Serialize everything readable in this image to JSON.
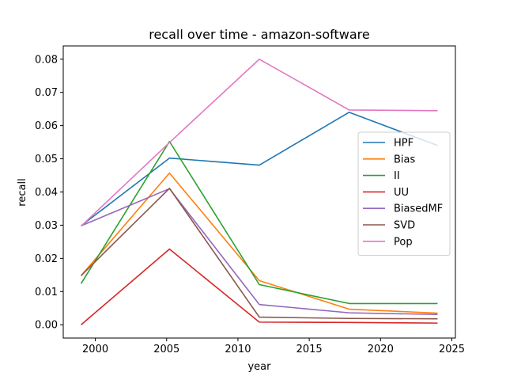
{
  "chart_data": {
    "type": "line",
    "title": "recall over time - amazon-software",
    "xlabel": "year",
    "ylabel": "recall",
    "xlim": [
      1997.75,
      2025.25
    ],
    "ylim": [
      -0.004,
      0.084
    ],
    "xticks": [
      2000,
      2005,
      2010,
      2015,
      2020,
      2025
    ],
    "yticks": [
      0.0,
      0.01,
      0.02,
      0.03,
      0.04,
      0.05,
      0.06,
      0.07,
      0.08
    ],
    "ytick_labels": [
      "0.00",
      "0.01",
      "0.02",
      "0.03",
      "0.04",
      "0.05",
      "0.06",
      "0.07",
      "0.08"
    ],
    "legend_position": "center-right",
    "x": [
      1999,
      2005.2,
      2011.5,
      2017.8,
      2024
    ],
    "series": [
      {
        "name": "HPF",
        "color": "#1f77b4",
        "values": [
          0.0298,
          0.0502,
          0.0481,
          0.064,
          0.054
        ]
      },
      {
        "name": "Bias",
        "color": "#ff7f0e",
        "values": [
          0.0148,
          0.0457,
          0.0133,
          0.0047,
          0.0035
        ]
      },
      {
        "name": "II",
        "color": "#2ca02c",
        "values": [
          0.0124,
          0.0552,
          0.0121,
          0.0064,
          0.0064
        ]
      },
      {
        "name": "UU",
        "color": "#d62728",
        "values": [
          0.0,
          0.0228,
          0.0008,
          0.0007,
          0.0005
        ]
      },
      {
        "name": "BiasedMF",
        "color": "#9467bd",
        "values": [
          0.0298,
          0.041,
          0.0061,
          0.0036,
          0.0031
        ]
      },
      {
        "name": "SVD",
        "color": "#8c564b",
        "values": [
          0.0148,
          0.0411,
          0.0023,
          0.0019,
          0.0018
        ]
      },
      {
        "name": "Pop",
        "color": "#e377c2",
        "values": [
          0.0297,
          0.0549,
          0.08,
          0.0647,
          0.0645
        ]
      }
    ]
  }
}
